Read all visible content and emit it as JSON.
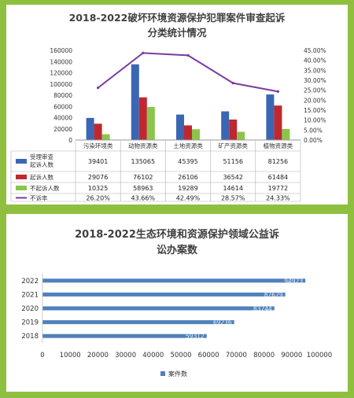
{
  "colors": {
    "frame": "#8fbf3f",
    "accepted": "#3b66b4",
    "prosecuted": "#c0282f",
    "not_prosecuted": "#8cc54b",
    "rate": "#7b3aa0",
    "bar2": "#4f81bd"
  },
  "chart_data": [
    {
      "type": "bar",
      "title": "2018-2022破坏环境资源保护犯罪案件审查起诉",
      "subtitle": "分类统计情况",
      "categories": [
        "污染环境类",
        "动物资源类",
        "土地资源类",
        "矿产资源类",
        "植物资源类"
      ],
      "series": [
        {
          "name": "受理审查起诉人数",
          "values": [
            39401,
            135065,
            45395,
            51156,
            81256
          ],
          "color": "#3b66b4",
          "axis": "left"
        },
        {
          "name": "起诉人数",
          "values": [
            29076,
            76102,
            26106,
            36542,
            61484
          ],
          "color": "#c0282f",
          "axis": "left"
        },
        {
          "name": "不起诉人数",
          "values": [
            10325,
            58963,
            19289,
            14614,
            19772
          ],
          "color": "#8cc54b",
          "axis": "left"
        }
      ],
      "line_series": {
        "name": "不诉率",
        "values": [
          26.2,
          43.66,
          42.49,
          28.57,
          24.33
        ],
        "labels": [
          "26.20%",
          "43.66%",
          "42.49%",
          "28.57%",
          "24.33%"
        ],
        "color": "#7b3aa0",
        "axis": "right"
      },
      "ylim": [
        0,
        160000
      ],
      "yticks": [
        "0",
        "20000",
        "40000",
        "60000",
        "80000",
        "100000",
        "120000",
        "140000",
        "160000"
      ],
      "y2lim": [
        0,
        45
      ],
      "y2ticks": [
        "0.00%",
        "5.00%",
        "10.00%",
        "15.00%",
        "20.00%",
        "25.00%",
        "30.00%",
        "35.00%",
        "40.00%",
        "45.00%"
      ],
      "legend_placement": "bottom-table",
      "table": {
        "row_labels": [
          "受理审查起诉人数",
          "起诉人数",
          "不起诉人数",
          "不诉率"
        ],
        "rows": [
          [
            "39401",
            "135065",
            "45395",
            "51156",
            "81256"
          ],
          [
            "29076",
            "76102",
            "26106",
            "36542",
            "61484"
          ],
          [
            "10325",
            "58963",
            "19289",
            "14614",
            "19772"
          ],
          [
            "26.20%",
            "43.66%",
            "42.49%",
            "28.57%",
            "24.33%"
          ]
        ]
      }
    },
    {
      "type": "bar",
      "orientation": "horizontal",
      "title": "2018-2022生态环境和资源保护领域公益诉",
      "subtitle": "讼办案数",
      "categories": [
        "2018",
        "2019",
        "2020",
        "2021",
        "2022"
      ],
      "series": [
        {
          "name": "案件数",
          "values": [
            59312,
            69236,
            83744,
            87679,
            94923
          ],
          "labels": [
            "59312",
            "69236",
            "83744",
            "87679",
            "94923"
          ],
          "color": "#4f81bd"
        }
      ],
      "xlim": [
        0,
        100000
      ],
      "xticks": [
        "0",
        "10000",
        "20000",
        "30000",
        "40000",
        "50000",
        "60000",
        "70000",
        "80000",
        "90000",
        "100000"
      ],
      "legend_placement": "bottom",
      "grid": false
    }
  ]
}
